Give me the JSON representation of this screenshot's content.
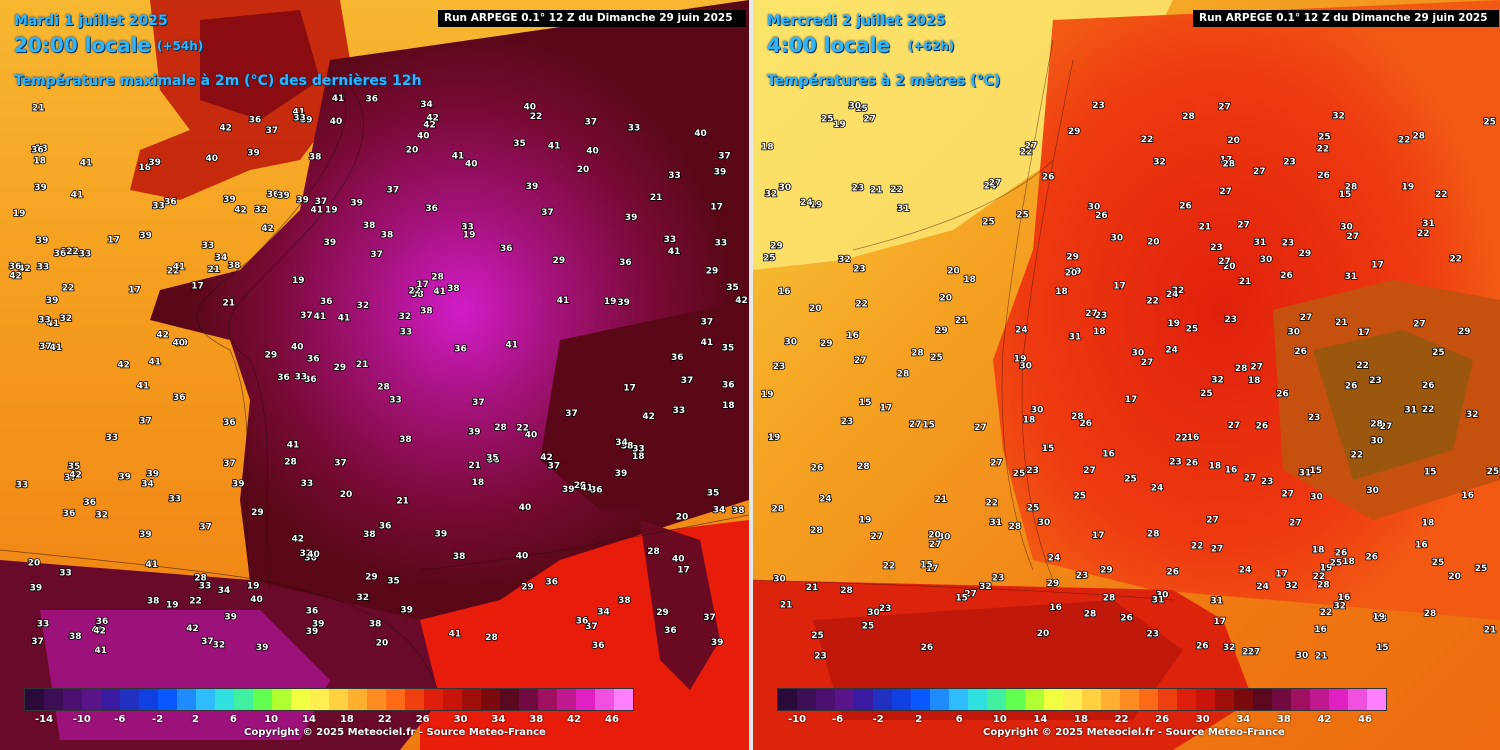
{
  "left_panel": {
    "date": "Mardi 1 juillet 2025",
    "time": "20:00 locale",
    "lead": "(+54h)",
    "description": "Température maximale à 2m (°C) des dernières 12h",
    "run": "Run ARPEGE 0.1° 12 Z du Dimanche 29 juin 2025",
    "copyright": "Copyright © 2025 Meteociel.fr - Source Meteo-France",
    "scale_labels": [
      "-14",
      "-10",
      "-6",
      "-2",
      "2",
      "6",
      "10",
      "14",
      "18",
      "22",
      "26",
      "30",
      "34",
      "38",
      "42",
      "46"
    ],
    "values": [
      "29",
      "32",
      "33",
      "36",
      "33",
      "36",
      "39",
      "37",
      "36",
      "38",
      "39",
      "41",
      "37",
      "38",
      "40",
      "41",
      "39",
      "42",
      "39",
      "41",
      "40",
      "42",
      "37",
      "36",
      "35",
      "33",
      "34",
      "28",
      "22",
      "20",
      "21",
      "17",
      "18",
      "19"
    ]
  },
  "right_panel": {
    "date": "Mercredi 2 juillet 2025",
    "time": "4:00 locale",
    "lead": "(+62h)",
    "description": "Températures à 2 mètres (°C)",
    "run": "Run ARPEGE 0.1° 12 Z du Dimanche 29 juin 2025",
    "copyright": "Copyright © 2025 Meteociel.fr - Source Meteo-France",
    "scale_labels": [
      "-10",
      "-6",
      "-2",
      "2",
      "6",
      "10",
      "14",
      "18",
      "22",
      "26",
      "30",
      "34",
      "38",
      "42",
      "46"
    ],
    "values": [
      "15",
      "17",
      "18",
      "19",
      "16",
      "23",
      "22",
      "27",
      "29",
      "30",
      "31",
      "32",
      "28",
      "26",
      "25",
      "24",
      "23",
      "27",
      "30",
      "28",
      "22",
      "20",
      "21",
      "25",
      "26",
      "27"
    ]
  },
  "colors": {
    "temp_scale": [
      "#2a0a3a",
      "#3b0e56",
      "#4c1070",
      "#5a148a",
      "#3a1aa0",
      "#2030c0",
      "#1040e0",
      "#0a58ff",
      "#1e8cff",
      "#2fbcff",
      "#30e0e0",
      "#40f0a0",
      "#60ff50",
      "#b0ff30",
      "#f0ff40",
      "#ffee50",
      "#ffd040",
      "#ffb030",
      "#ff8c20",
      "#ff6a18",
      "#f04010",
      "#e01e0c",
      "#c8140a",
      "#a00f0a",
      "#7a0a0e",
      "#5a0820",
      "#700a40",
      "#a01060",
      "#c01890",
      "#e020c0",
      "#f050e0",
      "#ff80ff"
    ],
    "ocean_warm": "#f08c10",
    "ocean_cool": "#f7b731",
    "land_hot": "#b0106a",
    "land_warm": "#e8250c",
    "accent_text": "#2fb4ff"
  },
  "icons": [
    "legend-color-scale"
  ]
}
